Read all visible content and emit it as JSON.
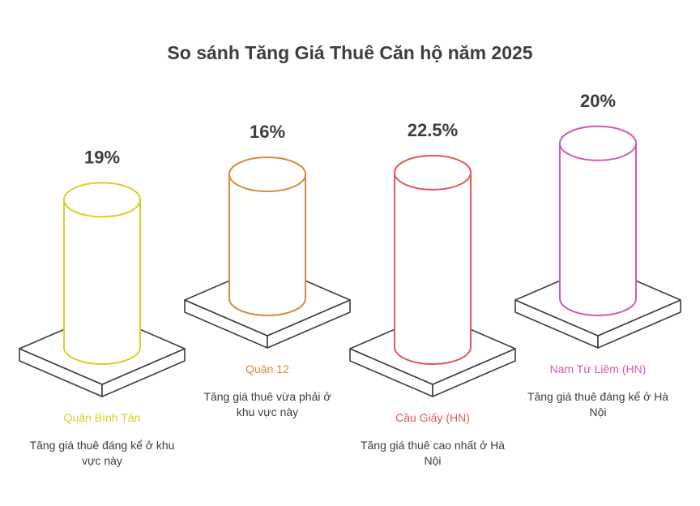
{
  "title": "So sánh Tăng Giá Thuê Căn hộ năm 2025",
  "chart_data": {
    "type": "bar",
    "categories": [
      "Quận Bình Tân",
      "Quận 12",
      "Cầu Giấy (HN)",
      "Nam Từ Liêm (HN)"
    ],
    "values": [
      19,
      16,
      22.5,
      20
    ],
    "value_labels": [
      "19%",
      "16%",
      "22.5%",
      "20%"
    ],
    "descriptions": [
      "Tăng giá thuê đáng kể ở khu vực này",
      "Tăng giá thuê vừa phải ở khu vực này",
      "Tăng giá thuê cao nhất ở Hà Nội",
      "Tăng giá thuê đáng kể ở Hà Nội"
    ],
    "colors": [
      "#d8cf2a",
      "#d98a3a",
      "#e05a5a",
      "#d35ab0"
    ]
  }
}
